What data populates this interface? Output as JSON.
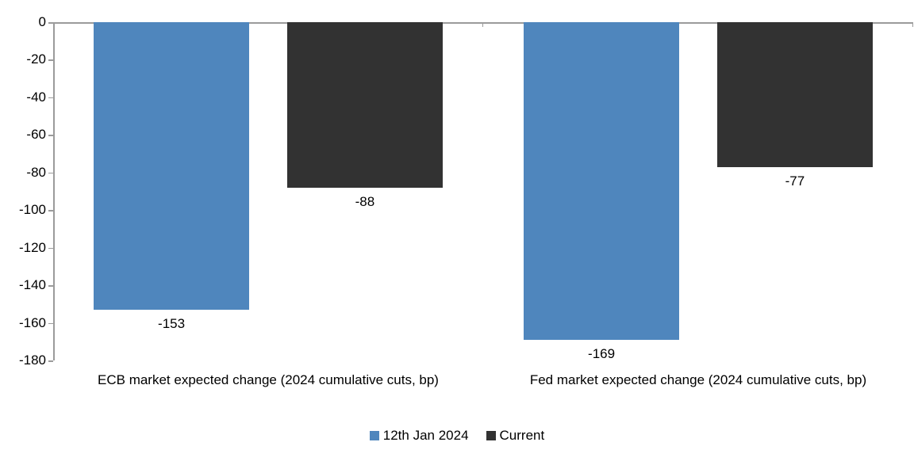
{
  "chart_data": {
    "type": "bar",
    "categories": [
      "ECB market expected change (2024 cumulative cuts, bp)",
      "Fed market expected change (2024 cumulative cuts, bp)"
    ],
    "series": [
      {
        "name": "12th Jan 2024",
        "color": "#4F86BD",
        "values": [
          -153,
          -169
        ]
      },
      {
        "name": "Current",
        "color": "#323232",
        "values": [
          -88,
          -77
        ]
      }
    ],
    "data_labels": [
      [
        "-153",
        "-169"
      ],
      [
        "-88",
        "-77"
      ]
    ],
    "yticks": [
      0,
      -20,
      -40,
      -60,
      -80,
      -100,
      -120,
      -140,
      -160,
      -180
    ],
    "ylim": [
      -180,
      0
    ],
    "title": "",
    "xlabel": "",
    "ylabel": "",
    "grid": false,
    "legend_position": "bottom",
    "axis_color": "#9b9b9b",
    "text_color": "#000000",
    "background": "#ffffff"
  }
}
